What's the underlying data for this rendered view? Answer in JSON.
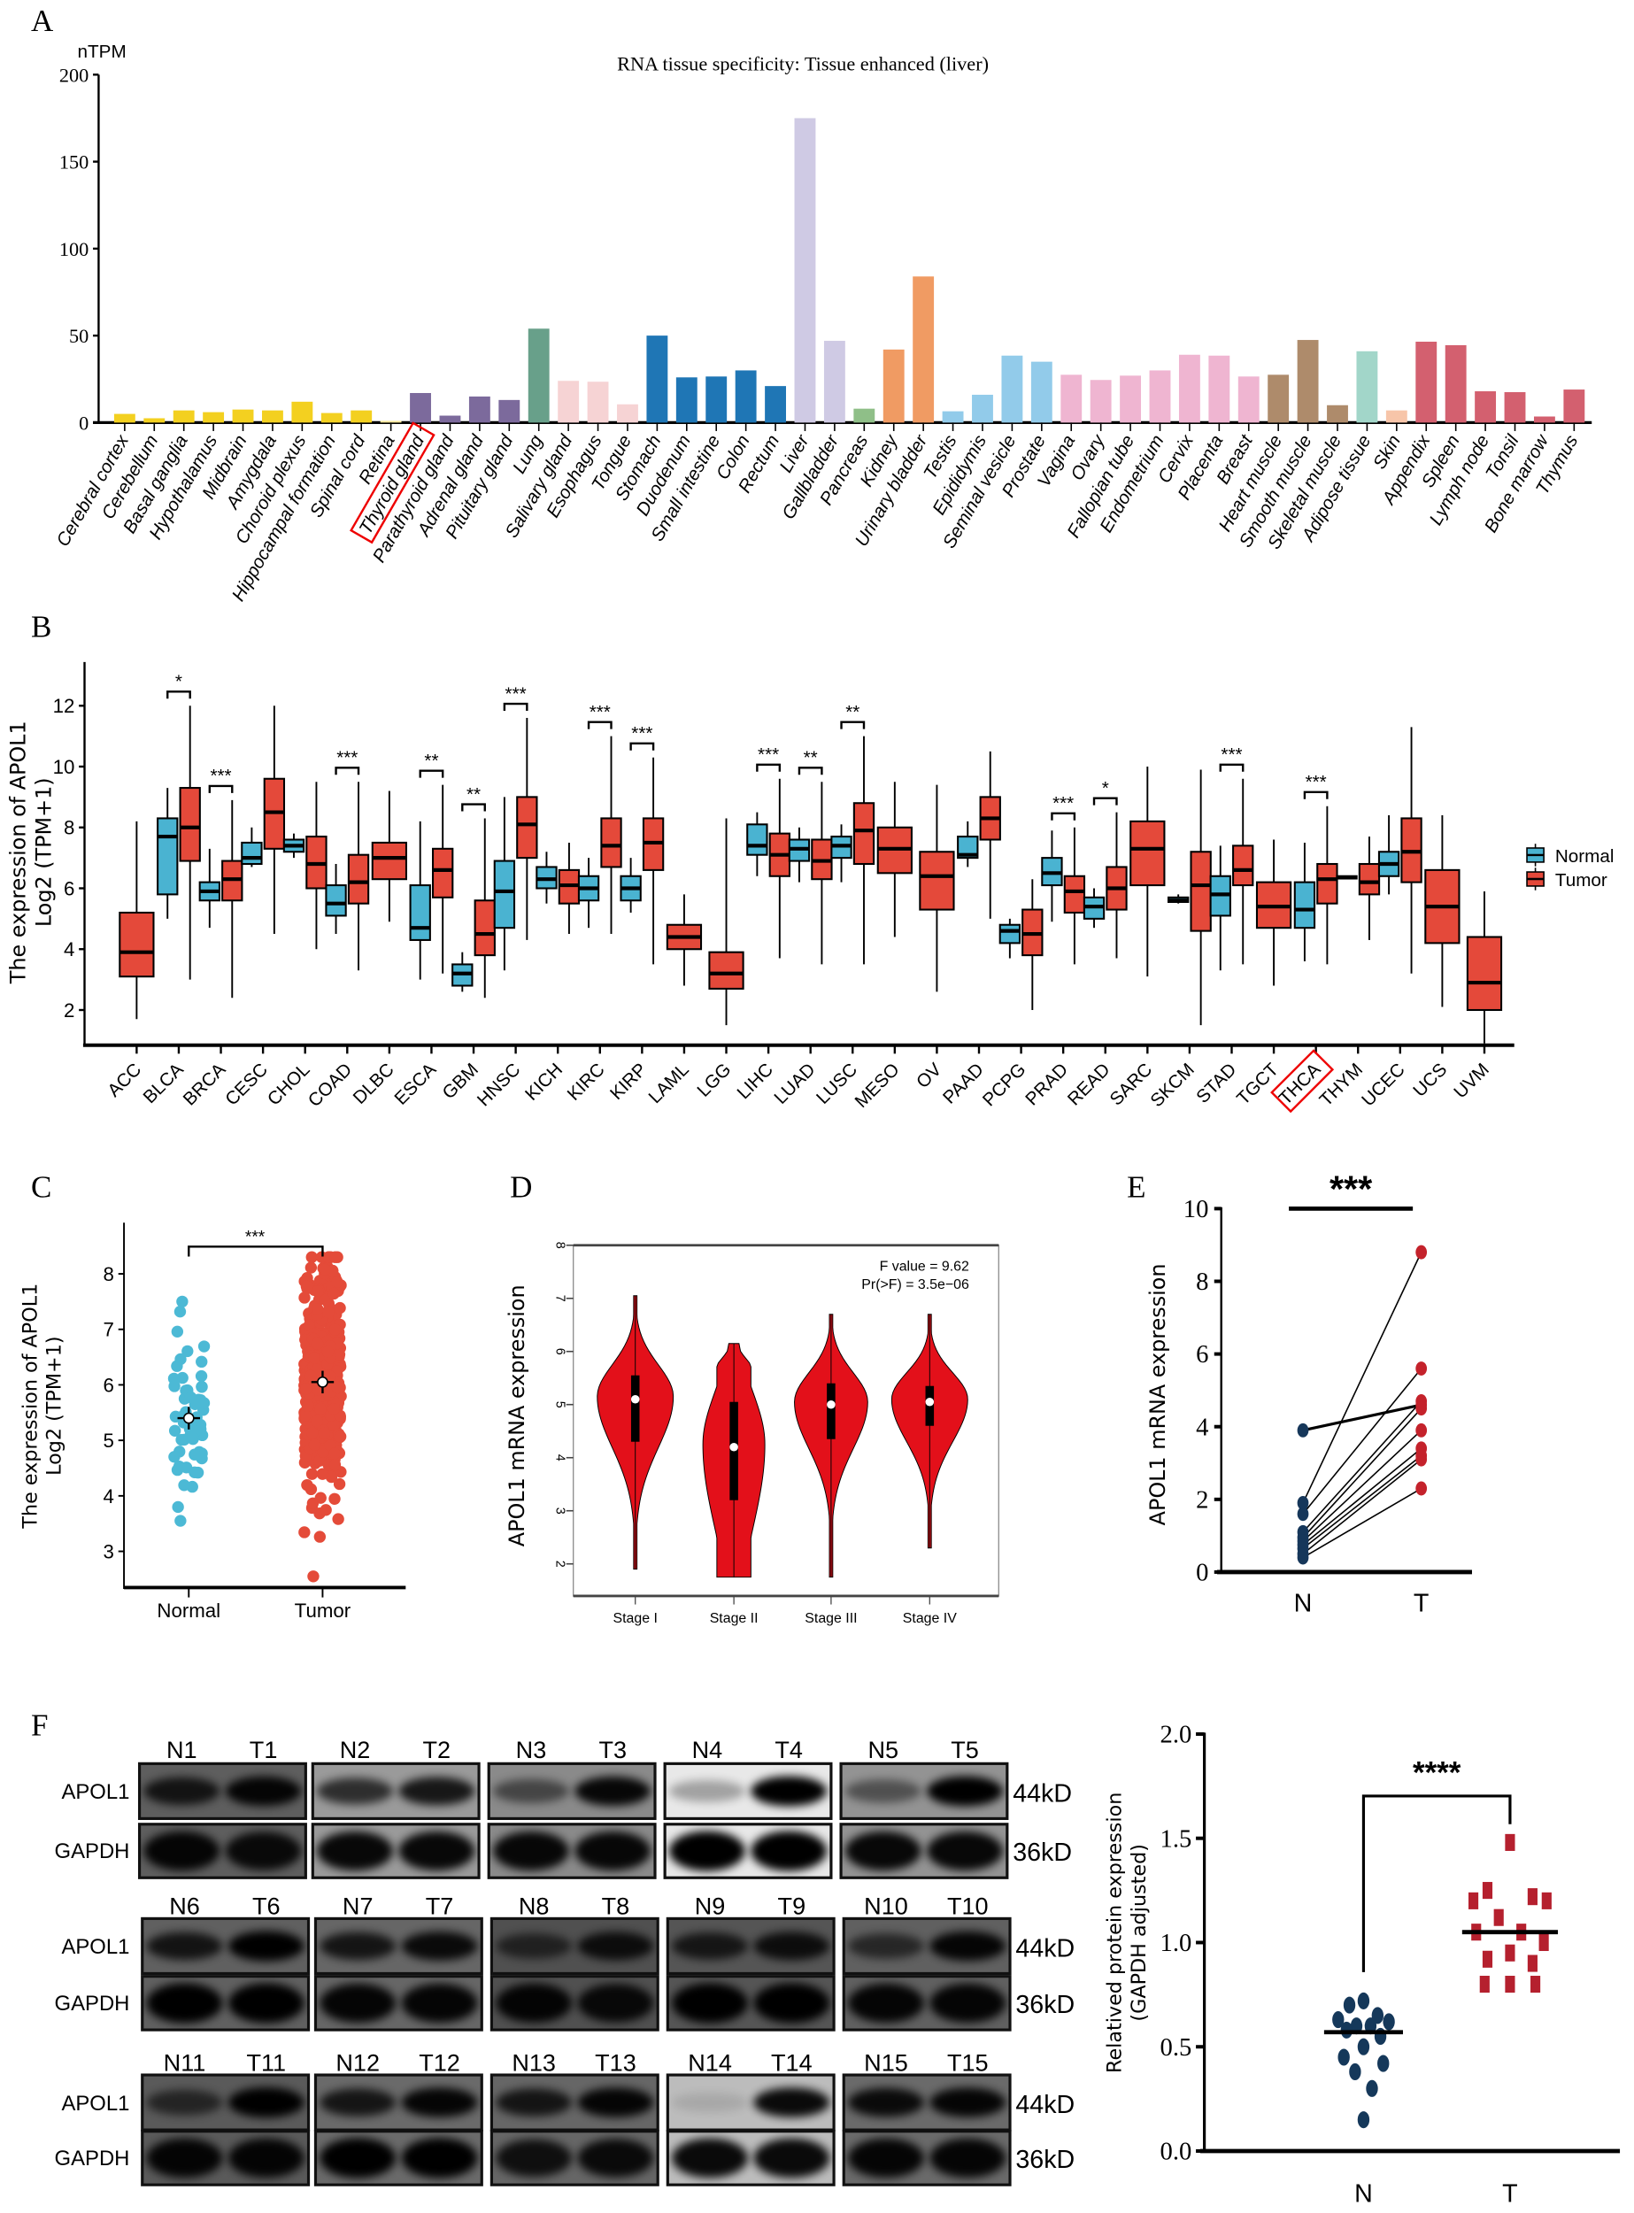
{
  "panel_labels": {
    "a": "A",
    "b": "B",
    "c": "C",
    "d": "D",
    "e": "E",
    "f": "F"
  },
  "chart_data": [
    {
      "id": "A",
      "type": "bar",
      "title": "RNA tissue specificity: Tissue enhanced (liver)",
      "ylabel": "nTPM",
      "ylim": [
        0,
        200
      ],
      "yticks": [
        0,
        50,
        100,
        150,
        200
      ],
      "highlight": "Thyroid gland",
      "categories": [
        "Cerebral cortex",
        "Cerebellum",
        "Basal ganglia",
        "Hypothalamus",
        "Midbrain",
        "Amygdala",
        "Choroid plexus",
        "Hippocampal formation",
        "Spinal cord",
        "Retina",
        "Thyroid gland",
        "Parathyroid gland",
        "Adrenal gland",
        "Pituitary gland",
        "Lung",
        "Salivary gland",
        "Esophagus",
        "Tongue",
        "Stomach",
        "Duodenum",
        "Small intestine",
        "Colon",
        "Rectum",
        "Liver",
        "Gallbladder",
        "Pancreas",
        "Kidney",
        "Urinary bladder",
        "Testis",
        "Epididymis",
        "Seminal vesicle",
        "Prostate",
        "Vagina",
        "Ovary",
        "Fallopian tube",
        "Endometrium",
        "Cervix",
        "Placenta",
        "Breast",
        "Heart muscle",
        "Smooth muscle",
        "Skeletal muscle",
        "Adipose tissue",
        "Skin",
        "Appendix",
        "Spleen",
        "Lymph node",
        "Tonsil",
        "Bone marrow",
        "Thymus"
      ],
      "values": [
        5,
        2.5,
        7,
        6,
        7.5,
        7,
        12,
        5.5,
        7,
        1,
        17,
        4,
        15,
        13,
        54,
        24,
        23.5,
        10.5,
        50,
        26,
        26.5,
        30,
        21,
        175,
        47,
        8,
        42,
        84,
        6.5,
        16,
        38.5,
        35,
        27.5,
        24.5,
        27,
        30,
        39,
        38.5,
        26.5,
        27.5,
        47.5,
        10,
        41,
        7,
        46.5,
        44.5,
        18,
        17.5,
        3.5,
        19
      ],
      "colors": [
        "#f3d020",
        "#f3d020",
        "#f3d020",
        "#f3d020",
        "#f3d020",
        "#f3d020",
        "#f3d020",
        "#f3d020",
        "#f3d020",
        "#f6e79a",
        "#7c6a9c",
        "#7c6a9c",
        "#7c6a9c",
        "#7c6a9c",
        "#68a08a",
        "#f6d3d4",
        "#f6d3d4",
        "#f6d3d4",
        "#1f76b5",
        "#1f76b5",
        "#1f76b5",
        "#1f76b5",
        "#1f76b5",
        "#cfcae4",
        "#cfcae4",
        "#8fbf88",
        "#f09b63",
        "#f09b63",
        "#92cbea",
        "#92cbea",
        "#92cbea",
        "#92cbea",
        "#efb5d1",
        "#efb5d1",
        "#efb5d1",
        "#efb5d1",
        "#efb5d1",
        "#efb5d1",
        "#efb5d1",
        "#ae8b6b",
        "#ae8b6b",
        "#ae8b6b",
        "#a2d6c9",
        "#f7c5a9",
        "#d3606f",
        "#d3606f",
        "#d3606f",
        "#d3606f",
        "#d3606f",
        "#d3606f"
      ]
    },
    {
      "id": "B",
      "type": "box",
      "ylabel_line1": "The expression of APOL1",
      "ylabel_line2": "Log2 (TPM+1)",
      "ylim": [
        0.3,
        13.2
      ],
      "yticks": [
        2,
        4,
        6,
        8,
        10,
        12
      ],
      "legend": [
        {
          "name": "Normal",
          "color": "#4ab3d1"
        },
        {
          "name": "Tumor",
          "color": "#e4493a"
        }
      ],
      "legend_position": "right",
      "highlight": "THCA",
      "box_format": "[min, q1, median, q3, max]",
      "categories": [
        {
          "name": "ACC",
          "tumor": [
            1.7,
            3.1,
            3.9,
            5.2,
            8.2
          ]
        },
        {
          "name": "BLCA",
          "normal": [
            5,
            5.8,
            7.7,
            8.3,
            9.3
          ],
          "tumor": [
            3,
            6.9,
            8,
            9.3,
            12
          ],
          "sig": "*"
        },
        {
          "name": "BRCA",
          "normal": [
            4.7,
            5.6,
            5.9,
            6.2,
            7.3
          ],
          "tumor": [
            2.4,
            5.6,
            6.3,
            6.9,
            8.9
          ],
          "sig": "***"
        },
        {
          "name": "CESC",
          "normal": [
            6.7,
            6.8,
            7,
            7.5,
            8
          ],
          "tumor": [
            4.5,
            7.3,
            8.5,
            9.6,
            12
          ]
        },
        {
          "name": "CHOL",
          "normal": [
            7,
            7.2,
            7.4,
            7.6,
            7.8
          ],
          "tumor": [
            4,
            6,
            6.8,
            7.7,
            9.5
          ]
        },
        {
          "name": "COAD",
          "normal": [
            4.5,
            5.1,
            5.5,
            6.1,
            6.8
          ],
          "tumor": [
            3.3,
            5.5,
            6.2,
            7.1,
            9.5
          ],
          "sig": "***"
        },
        {
          "name": "DLBC",
          "tumor": [
            4.9,
            6.3,
            7,
            7.5,
            9.2
          ]
        },
        {
          "name": "ESCA",
          "normal": [
            3,
            4.3,
            4.7,
            6.1,
            8.2
          ],
          "tumor": [
            3.2,
            5.7,
            6.6,
            7.3,
            9.4
          ],
          "sig": "**"
        },
        {
          "name": "GBM",
          "normal": [
            2.6,
            2.8,
            3.2,
            3.5,
            3.9
          ],
          "tumor": [
            2.4,
            3.8,
            4.5,
            5.6,
            8.3
          ],
          "sig": "**"
        },
        {
          "name": "HNSC",
          "normal": [
            3.3,
            4.7,
            5.9,
            6.9,
            9
          ],
          "tumor": [
            4.3,
            7,
            8.1,
            9,
            11.6
          ],
          "sig": "***"
        },
        {
          "name": "KICH",
          "normal": [
            5.5,
            6,
            6.3,
            6.7,
            7.2
          ],
          "tumor": [
            4.5,
            5.5,
            6.1,
            6.6,
            7.5
          ]
        },
        {
          "name": "KIRC",
          "normal": [
            4.7,
            5.6,
            6,
            6.4,
            7
          ],
          "tumor": [
            4.5,
            6.7,
            7.4,
            8.3,
            11
          ],
          "sig": "***"
        },
        {
          "name": "KIRP",
          "normal": [
            5.2,
            5.6,
            6,
            6.4,
            7
          ],
          "tumor": [
            3.5,
            6.6,
            7.5,
            8.3,
            10.3
          ],
          "sig": "***"
        },
        {
          "name": "LAML",
          "tumor": [
            2.8,
            4,
            4.4,
            4.8,
            5.8
          ]
        },
        {
          "name": "LGG",
          "tumor": [
            1.5,
            2.7,
            3.2,
            3.9,
            8.3
          ]
        },
        {
          "name": "LIHC",
          "normal": [
            6.4,
            7.1,
            7.4,
            8.1,
            8.5
          ],
          "tumor": [
            3.7,
            6.4,
            7.1,
            7.8,
            9.6
          ],
          "sig": "***"
        },
        {
          "name": "LUAD",
          "normal": [
            6.2,
            6.9,
            7.3,
            7.6,
            8
          ],
          "tumor": [
            3.5,
            6.3,
            6.9,
            7.6,
            9.5
          ],
          "sig": "**"
        },
        {
          "name": "LUSC",
          "normal": [
            6.2,
            7,
            7.4,
            7.7,
            8.1
          ],
          "tumor": [
            3.5,
            6.8,
            7.9,
            8.8,
            11
          ],
          "sig": "**"
        },
        {
          "name": "MESO",
          "tumor": [
            4.4,
            6.5,
            7.3,
            8,
            9.5
          ]
        },
        {
          "name": "OV",
          "tumor": [
            2.6,
            5.3,
            6.4,
            7.2,
            9.4
          ]
        },
        {
          "name": "PAAD",
          "normal": [
            6.7,
            7,
            7.1,
            7.7,
            8.2
          ],
          "tumor": [
            5,
            7.6,
            8.3,
            9,
            10.5
          ]
        },
        {
          "name": "PCPG",
          "normal": [
            3.7,
            4.2,
            4.6,
            4.8,
            5
          ],
          "tumor": [
            2,
            3.8,
            4.5,
            5.3,
            6.3
          ]
        },
        {
          "name": "PRAD",
          "normal": [
            4.9,
            6.1,
            6.5,
            7,
            7.9
          ],
          "tumor": [
            3.5,
            5.2,
            5.9,
            6.4,
            8
          ],
          "sig": "***"
        },
        {
          "name": "READ",
          "normal": [
            4.7,
            5,
            5.4,
            5.7,
            6
          ],
          "tumor": [
            3.7,
            5.3,
            6,
            6.7,
            8.5
          ],
          "sig": "*"
        },
        {
          "name": "SARC",
          "tumor": [
            3.1,
            6.1,
            7.3,
            8.2,
            10
          ]
        },
        {
          "name": "SKCM",
          "normal": [
            5.5,
            5.55,
            5.6,
            5.7,
            5.8
          ],
          "tumor": [
            1.5,
            4.6,
            6.1,
            7.2,
            9.9
          ]
        },
        {
          "name": "STAD",
          "normal": [
            3.3,
            5.1,
            5.8,
            6.4,
            7.4
          ],
          "tumor": [
            3.5,
            6.1,
            6.6,
            7.4,
            9.6
          ],
          "sig": "***"
        },
        {
          "name": "TGCT",
          "tumor": [
            2.8,
            4.7,
            5.4,
            6.2,
            7.6
          ]
        },
        {
          "name": "THCA",
          "normal": [
            3.6,
            4.7,
            5.3,
            6.2,
            7.5
          ],
          "tumor": [
            3.5,
            5.5,
            6.3,
            6.8,
            8.7
          ],
          "sig": "***"
        },
        {
          "name": "THYM",
          "normal": [
            6.3,
            6.32,
            6.35,
            6.4,
            6.42
          ],
          "tumor": [
            4.3,
            5.8,
            6.2,
            6.8,
            7.7
          ]
        },
        {
          "name": "UCEC",
          "normal": [
            5.8,
            6.4,
            6.8,
            7.2,
            8.4
          ],
          "tumor": [
            3.2,
            6.2,
            7.2,
            8.3,
            11.3
          ]
        },
        {
          "name": "UCS",
          "tumor": [
            2.1,
            4.2,
            5.4,
            6.6,
            8.4
          ]
        },
        {
          "name": "UVM",
          "tumor": [
            0.9,
            2,
            2.9,
            4.4,
            5.9
          ]
        }
      ]
    },
    {
      "id": "C",
      "type": "scatter",
      "ylabel_line1": "The expression of APOL1",
      "ylabel_line2": "Log2 (TPM+1)",
      "ylim": [
        2.4,
        8.8
      ],
      "yticks": [
        3,
        4,
        5,
        6,
        7,
        8
      ],
      "categories": [
        "Normal",
        "Tumor"
      ],
      "groups": [
        {
          "name": "Normal",
          "mean": 5.4,
          "range": [
            3.55,
            7.5
          ],
          "color": "#4cb9d5"
        },
        {
          "name": "Tumor",
          "mean": 6.05,
          "range": [
            2.55,
            8.3
          ],
          "color": "#e44b39"
        }
      ],
      "sig": "***"
    },
    {
      "id": "D",
      "type": "violin",
      "ylabel": "APOL1 mRNA expression",
      "ylim": [
        1.5,
        8
      ],
      "yticks": [
        2,
        3,
        4,
        5,
        6,
        7,
        8
      ],
      "categories": [
        "Stage I",
        "Stage II",
        "Stage III",
        "Stage IV"
      ],
      "stats": [
        {
          "min": 1.9,
          "q1": 4.3,
          "median": 5.1,
          "q3": 5.55,
          "max": 7.05
        },
        {
          "min": 1.75,
          "q1": 3.2,
          "median": 4.2,
          "q3": 5.05,
          "max": 6.15
        },
        {
          "min": 1.75,
          "q1": 4.35,
          "median": 5.0,
          "q3": 5.4,
          "max": 6.7
        },
        {
          "min": 2.3,
          "q1": 4.6,
          "median": 5.05,
          "q3": 5.35,
          "max": 6.7
        }
      ],
      "annotation_line1": "F value = 9.62",
      "annotation_line2": "Pr(>F) = 3.5e−06",
      "color": "#e3101a"
    },
    {
      "id": "E",
      "type": "paired",
      "ylabel": "APOL1 mRNA expression",
      "ylim": [
        0,
        10
      ],
      "yticks": [
        0,
        2,
        4,
        6,
        8,
        10
      ],
      "categories": [
        "N",
        "T"
      ],
      "pairs": [
        [
          3.9,
          4.6
        ],
        [
          1.9,
          8.8
        ],
        [
          1.6,
          5.6
        ],
        [
          1.1,
          4.7
        ],
        [
          0.95,
          4.5
        ],
        [
          0.85,
          3.9
        ],
        [
          0.75,
          3.4
        ],
        [
          0.65,
          3.2
        ],
        [
          0.5,
          3.1
        ],
        [
          0.4,
          2.3
        ]
      ],
      "sig": "***",
      "colors": {
        "N": "#16375a",
        "T": "#c4222b"
      }
    },
    {
      "id": "F",
      "type": "scatter",
      "ylabel_line1": "Relatived protein expression",
      "ylabel_line2": "(GAPDH adjusted)",
      "ylim": [
        0,
        2.0
      ],
      "yticks": [
        "0.0",
        "0.5",
        "1.0",
        "1.5",
        "2.0"
      ],
      "categories": [
        "N",
        "T"
      ],
      "N": [
        0.72,
        0.7,
        0.65,
        0.63,
        0.62,
        0.6,
        0.6,
        0.58,
        0.55,
        0.5,
        0.45,
        0.42,
        0.38,
        0.3,
        0.15
      ],
      "T": [
        1.48,
        1.25,
        1.22,
        1.2,
        1.2,
        1.12,
        1.05,
        1.05,
        1.0,
        0.95,
        0.92,
        0.9,
        0.8,
        0.8,
        0.8
      ],
      "means": {
        "N": 0.57,
        "T": 1.05
      },
      "sig": "****",
      "colors": {
        "N": "#15385a",
        "T": "#b5202e"
      }
    }
  ],
  "western_blot": {
    "row_labels": {
      "apol1": "APOL1",
      "gapdh": "GAPDH"
    },
    "sizes": {
      "apol1": "44kD",
      "gapdh": "36kD"
    },
    "panels": [
      {
        "n": "N1",
        "t": "T1",
        "apol1": [
          0.8,
          0.95
        ],
        "gapdh": [
          0.95,
          0.9
        ],
        "bg": "#5e5e5e"
      },
      {
        "n": "N2",
        "t": "T2",
        "apol1": [
          0.7,
          0.85
        ],
        "gapdh": [
          0.95,
          0.95
        ],
        "bg": "#9a9a9a"
      },
      {
        "n": "N3",
        "t": "T3",
        "apol1": [
          0.5,
          0.95
        ],
        "gapdh": [
          0.95,
          0.95
        ],
        "bg": "#8a8a8a"
      },
      {
        "n": "N4",
        "t": "T4",
        "apol1": [
          0.3,
          1.0
        ],
        "gapdh": [
          1.0,
          1.0
        ],
        "bg": "#e8e8e8"
      },
      {
        "n": "N5",
        "t": "T5",
        "apol1": [
          0.45,
          1.0
        ],
        "gapdh": [
          0.95,
          0.95
        ],
        "bg": "#939393"
      },
      {
        "n": "N6",
        "t": "T6",
        "apol1": [
          0.8,
          1.0
        ],
        "gapdh": [
          1.0,
          1.0
        ],
        "bg": "#606060"
      },
      {
        "n": "N7",
        "t": "T7",
        "apol1": [
          0.8,
          0.9
        ],
        "gapdh": [
          0.95,
          0.95
        ],
        "bg": "#666666"
      },
      {
        "n": "N8",
        "t": "T8",
        "apol1": [
          0.6,
          0.85
        ],
        "gapdh": [
          0.95,
          0.9
        ],
        "bg": "#505050"
      },
      {
        "n": "N9",
        "t": "T9",
        "apol1": [
          0.75,
          0.85
        ],
        "gapdh": [
          1.0,
          1.0
        ],
        "bg": "#555555"
      },
      {
        "n": "N10",
        "t": "T10",
        "apol1": [
          0.6,
          0.95
        ],
        "gapdh": [
          0.95,
          0.95
        ],
        "bg": "#606060"
      },
      {
        "n": "N11",
        "t": "T11",
        "apol1": [
          0.6,
          1.0
        ],
        "gapdh": [
          0.95,
          0.95
        ],
        "bg": "#5a5a5a"
      },
      {
        "n": "N12",
        "t": "T12",
        "apol1": [
          0.8,
          0.95
        ],
        "gapdh": [
          1.0,
          1.0
        ],
        "bg": "#6a6a6a"
      },
      {
        "n": "N13",
        "t": "T13",
        "apol1": [
          0.8,
          0.95
        ],
        "gapdh": [
          0.85,
          0.9
        ],
        "bg": "#666666"
      },
      {
        "n": "N14",
        "t": "T14",
        "apol1": [
          0.1,
          0.95
        ],
        "gapdh": [
          0.95,
          0.95
        ],
        "bg": "#bcbcbc"
      },
      {
        "n": "N15",
        "t": "T15",
        "apol1": [
          0.9,
          0.95
        ],
        "gapdh": [
          0.95,
          0.95
        ],
        "bg": "#6a6a6a"
      }
    ]
  }
}
